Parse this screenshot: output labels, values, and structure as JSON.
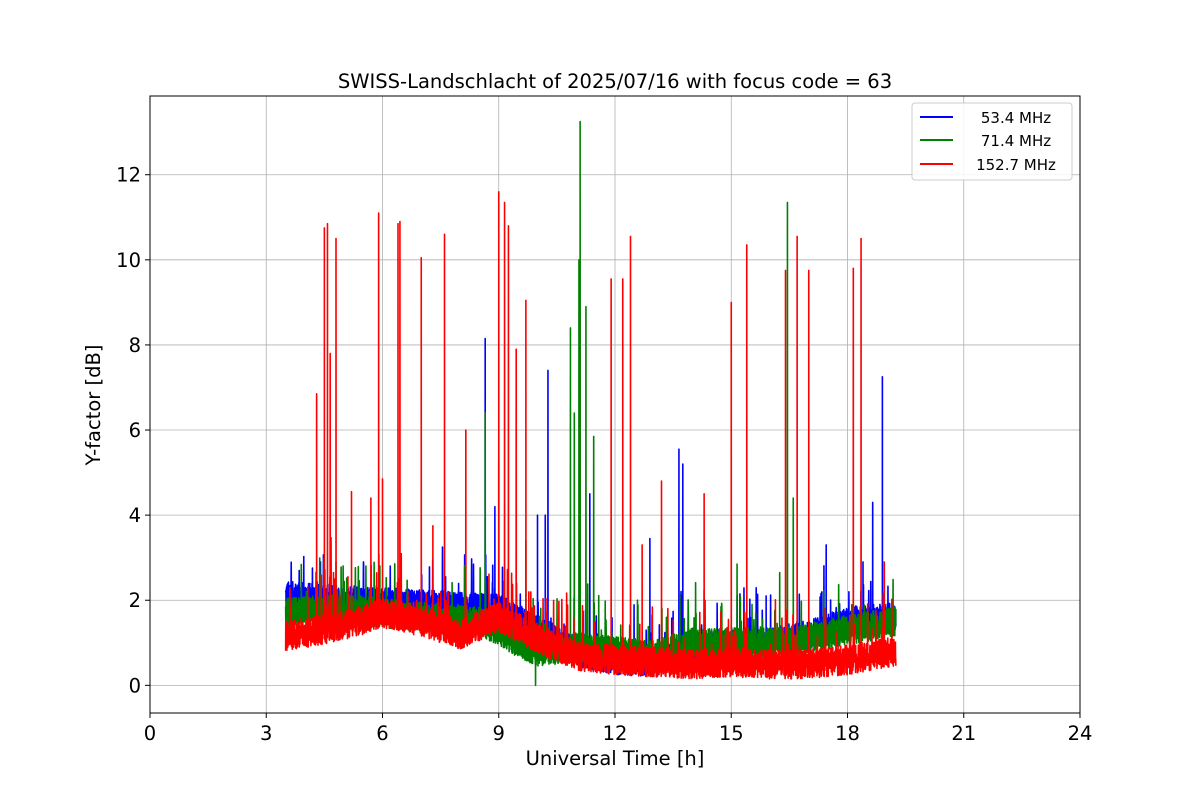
{
  "chart_data": {
    "type": "line",
    "title": "SWISS-Landschlacht of 2025/07/16 with focus code = 63",
    "xlabel": "Universal Time [h]",
    "ylabel": "Y-factor [dB]",
    "xlim": [
      0,
      24
    ],
    "ylim": [
      -0.65,
      13.85
    ],
    "xticks": [
      0,
      3,
      6,
      9,
      12,
      15,
      18,
      21,
      24
    ],
    "yticks": [
      0,
      2,
      4,
      6,
      8,
      10,
      12
    ],
    "grid": true,
    "legend_position": "top-right",
    "series": [
      {
        "name": "53.4 MHz",
        "color": "#0000ff",
        "x_range": [
          3.5,
          19.25
        ],
        "baseline": [
          [
            3.5,
            2.1
          ],
          [
            5.0,
            2.0
          ],
          [
            7.0,
            1.9
          ],
          [
            9.0,
            1.8
          ],
          [
            10.0,
            1.3
          ],
          [
            11.0,
            0.8
          ],
          [
            12.0,
            0.6
          ],
          [
            13.0,
            0.55
          ],
          [
            14.0,
            0.9
          ],
          [
            15.0,
            1.0
          ],
          [
            16.0,
            1.0
          ],
          [
            17.0,
            1.2
          ],
          [
            18.0,
            1.5
          ],
          [
            19.25,
            1.6
          ]
        ],
        "peaks": [
          [
            3.85,
            2.7
          ],
          [
            4.4,
            2.9
          ],
          [
            8.65,
            8.15
          ],
          [
            8.9,
            4.2
          ],
          [
            10.0,
            4.0
          ],
          [
            10.2,
            4.0
          ],
          [
            10.27,
            7.4
          ],
          [
            11.35,
            4.5
          ],
          [
            12.9,
            3.45
          ],
          [
            13.65,
            5.55
          ],
          [
            13.75,
            5.2
          ],
          [
            15.9,
            2.1
          ],
          [
            17.45,
            3.3
          ],
          [
            18.4,
            2.9
          ],
          [
            18.65,
            4.3
          ],
          [
            18.9,
            7.25
          ]
        ]
      },
      {
        "name": "71.4 MHz",
        "color": "#008000",
        "x_range": [
          3.5,
          19.25
        ],
        "baseline": [
          [
            3.5,
            1.7
          ],
          [
            5.0,
            1.8
          ],
          [
            7.0,
            1.6
          ],
          [
            8.5,
            1.5
          ],
          [
            9.0,
            1.3
          ],
          [
            9.5,
            1.0
          ],
          [
            10.0,
            0.8
          ],
          [
            11.0,
            0.9
          ],
          [
            12.0,
            0.8
          ],
          [
            13.0,
            0.7
          ],
          [
            14.0,
            1.0
          ],
          [
            15.0,
            1.0
          ],
          [
            16.0,
            1.0
          ],
          [
            17.0,
            1.1
          ],
          [
            18.0,
            1.3
          ],
          [
            19.25,
            1.5
          ]
        ],
        "peaks": [
          [
            4.8,
            2.9
          ],
          [
            8.65,
            6.4
          ],
          [
            9.0,
            5.3
          ],
          [
            9.7,
            3.4
          ],
          [
            10.85,
            8.4
          ],
          [
            10.95,
            6.4
          ],
          [
            11.1,
            13.25
          ],
          [
            11.07,
            10.0
          ],
          [
            11.25,
            8.9
          ],
          [
            11.45,
            5.85
          ],
          [
            15.15,
            2.85
          ],
          [
            16.25,
            2.65
          ],
          [
            16.45,
            11.35
          ],
          [
            16.6,
            4.4
          ]
        ],
        "dips": [
          [
            9.95,
            0.0
          ]
        ]
      },
      {
        "name": "152.7 MHz",
        "color": "#ff0000",
        "x_range": [
          3.5,
          19.25
        ],
        "baseline": [
          [
            3.5,
            1.15
          ],
          [
            5.0,
            1.4
          ],
          [
            6.0,
            1.7
          ],
          [
            7.0,
            1.5
          ],
          [
            8.0,
            1.2
          ],
          [
            9.0,
            1.6
          ],
          [
            10.0,
            1.1
          ],
          [
            11.0,
            0.7
          ],
          [
            12.0,
            0.6
          ],
          [
            13.0,
            0.55
          ],
          [
            14.0,
            0.5
          ],
          [
            15.0,
            0.55
          ],
          [
            16.0,
            0.5
          ],
          [
            17.0,
            0.5
          ],
          [
            18.0,
            0.6
          ],
          [
            19.25,
            0.8
          ]
        ],
        "peaks": [
          [
            4.3,
            6.85
          ],
          [
            4.5,
            10.75
          ],
          [
            4.58,
            10.85
          ],
          [
            4.65,
            7.8
          ],
          [
            4.8,
            10.5
          ],
          [
            5.2,
            4.55
          ],
          [
            5.7,
            4.4
          ],
          [
            5.9,
            11.1
          ],
          [
            6.0,
            4.85
          ],
          [
            6.4,
            10.85
          ],
          [
            6.45,
            10.9
          ],
          [
            7.0,
            10.05
          ],
          [
            7.3,
            3.75
          ],
          [
            7.6,
            10.6
          ],
          [
            8.15,
            6.0
          ],
          [
            9.0,
            11.6
          ],
          [
            9.15,
            11.35
          ],
          [
            9.25,
            10.8
          ],
          [
            9.45,
            7.9
          ],
          [
            9.7,
            9.05
          ],
          [
            11.9,
            9.55
          ],
          [
            12.2,
            9.55
          ],
          [
            12.4,
            10.55
          ],
          [
            12.7,
            3.3
          ],
          [
            13.2,
            4.8
          ],
          [
            14.3,
            4.5
          ],
          [
            15.0,
            9.0
          ],
          [
            15.4,
            10.35
          ],
          [
            16.4,
            9.75
          ],
          [
            16.7,
            10.55
          ],
          [
            17.0,
            9.75
          ],
          [
            18.15,
            9.8
          ],
          [
            18.35,
            10.5
          ],
          [
            18.95,
            2.9
          ]
        ]
      }
    ]
  }
}
